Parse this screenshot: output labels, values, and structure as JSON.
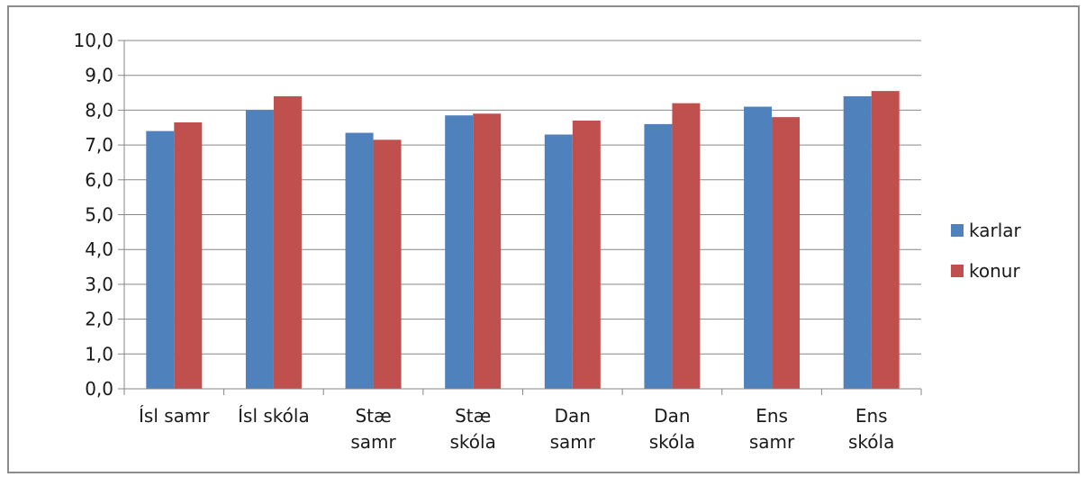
{
  "chart_data": {
    "type": "bar",
    "title": "",
    "xlabel": "",
    "ylabel": "",
    "ylim": [
      0,
      10
    ],
    "y_ticks": [
      "0,0",
      "1,0",
      "2,0",
      "3,0",
      "4,0",
      "5,0",
      "6,0",
      "7,0",
      "8,0",
      "9,0",
      "10,0"
    ],
    "grid": true,
    "legend_position": "right",
    "categories": [
      [
        "Ísl samr"
      ],
      [
        "Ísl skóla"
      ],
      [
        "Stæ",
        "samr"
      ],
      [
        "Stæ",
        "skóla"
      ],
      [
        "Dan",
        "samr"
      ],
      [
        "Dan",
        "skóla"
      ],
      [
        "Ens",
        "samr"
      ],
      [
        "Ens",
        "skóla"
      ]
    ],
    "series": [
      {
        "name": "karlar",
        "color": "#4f81bd",
        "values": [
          7.4,
          8.0,
          7.35,
          7.85,
          7.3,
          7.6,
          8.1,
          8.4
        ]
      },
      {
        "name": "konur",
        "color": "#c0504d",
        "values": [
          7.65,
          8.4,
          7.15,
          7.9,
          7.7,
          8.2,
          7.8,
          8.55
        ]
      }
    ]
  }
}
